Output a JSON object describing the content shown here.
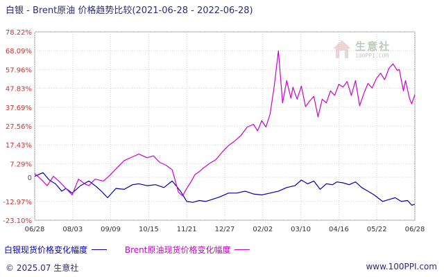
{
  "title": "白银 - Brent原油 价格趋势比较(2021-06-28 - 2022-06-28)",
  "footer": {
    "copyright": "© 2025.07 生意社",
    "url": "www.100PPI.com"
  },
  "watermark": {
    "name": "生意社",
    "url": "100PPI.COM"
  },
  "chart_data": {
    "type": "line",
    "title": "白银 - Brent原油 价格趋势比较(2021-06-28 - 2022-06-28)",
    "xlabel": "",
    "ylabel": "",
    "ylim": [
      -23.1,
      78.22
    ],
    "grid": true,
    "legend": "bottom-left",
    "y_ticks": [
      78.22,
      68.09,
      57.96,
      47.83,
      37.69,
      27.56,
      17.43,
      7.29,
      0,
      -12.97,
      -23.1
    ],
    "y_tick_labels": [
      "78.22%",
      "68.09%",
      "57.96%",
      "47.83%",
      "37.69%",
      "27.56%",
      "17.43%",
      "7.29%",
      "0",
      "-12.97%",
      "-23.10%"
    ],
    "x_tick_labels": [
      "06/28",
      "08/03",
      "09/09",
      "10/15",
      "11/21",
      "12/27",
      "02/02",
      "03/10",
      "04/16",
      "05/22",
      "06/28"
    ],
    "x_range": [
      0,
      365
    ],
    "series": [
      {
        "name": "白银现货价格变化幅度",
        "color": "#0000aa",
        "x": [
          0,
          8,
          14,
          20,
          26,
          30,
          36,
          44,
          52,
          58,
          64,
          70,
          78,
          86,
          94,
          100,
          108,
          116,
          124,
          132,
          140,
          146,
          152,
          158,
          164,
          170,
          178,
          186,
          194,
          202,
          210,
          218,
          226,
          234,
          242,
          250,
          256,
          262,
          268,
          274,
          280,
          286,
          290,
          296,
          302,
          308,
          314,
          320,
          326,
          334,
          340,
          346,
          352,
          358,
          362,
          365
        ],
        "values": [
          0.5,
          2.5,
          -1.5,
          -3.5,
          -7.5,
          -6.0,
          -8.5,
          -4.5,
          -2.0,
          -4.5,
          -7.5,
          -11.0,
          -6.0,
          -6.5,
          -4.0,
          -3.5,
          -4.5,
          -4.0,
          -5.5,
          -2.0,
          -7.5,
          -13.0,
          -13.5,
          -12.5,
          -13.0,
          -12.0,
          -10.5,
          -8.5,
          -8.5,
          -7.5,
          -9.0,
          -9.5,
          -8.5,
          -7.5,
          -5.5,
          -4.5,
          -1.5,
          -3.5,
          -2.0,
          -6.5,
          -3.5,
          -4.0,
          -2.5,
          -3.0,
          -4.0,
          -2.5,
          -5.5,
          -7.5,
          -9.5,
          -13.0,
          -12.0,
          -11.0,
          -13.0,
          -12.5,
          -15.0,
          -14.5
        ]
      },
      {
        "name": "Brent原油现货价格变化幅度",
        "color": "#cc00cc",
        "x": [
          0,
          6,
          12,
          18,
          24,
          30,
          36,
          42,
          48,
          52,
          58,
          66,
          72,
          78,
          86,
          94,
          100,
          108,
          114,
          120,
          126,
          132,
          138,
          142,
          146,
          150,
          154,
          158,
          162,
          168,
          174,
          180,
          186,
          192,
          198,
          204,
          210,
          214,
          218,
          222,
          226,
          230,
          234,
          238,
          242,
          246,
          248,
          250,
          252,
          256,
          260,
          264,
          268,
          272,
          276,
          280,
          284,
          288,
          292,
          296,
          300,
          304,
          308,
          312,
          316,
          320,
          324,
          328,
          332,
          336,
          340,
          344,
          348,
          350,
          354,
          356,
          360,
          362,
          365
        ],
        "values": [
          2.0,
          -1.0,
          -4.5,
          0.5,
          -2.5,
          -6.0,
          -9.5,
          -1.0,
          -3.5,
          -4.5,
          -1.0,
          -2.0,
          1.0,
          4.5,
          9.0,
          11.0,
          12.5,
          10.5,
          11.5,
          8.0,
          6.5,
          4.0,
          -8.0,
          -10.0,
          -6.0,
          -2.5,
          1.5,
          3.0,
          5.0,
          7.5,
          9.5,
          13.5,
          17.0,
          19.5,
          22.5,
          27.0,
          28.5,
          25.0,
          30.5,
          27.0,
          34.0,
          49.0,
          68.0,
          40.0,
          52.0,
          42.5,
          48.5,
          45.0,
          42.0,
          49.0,
          38.0,
          41.0,
          43.5,
          32.5,
          42.0,
          40.0,
          46.5,
          44.0,
          50.0,
          48.5,
          51.5,
          44.0,
          52.0,
          38.5,
          45.0,
          50.5,
          48.0,
          53.0,
          56.0,
          52.5,
          58.5,
          61.0,
          57.5,
          58.0,
          46.5,
          52.0,
          42.0,
          39.5,
          44.5
        ]
      }
    ]
  }
}
